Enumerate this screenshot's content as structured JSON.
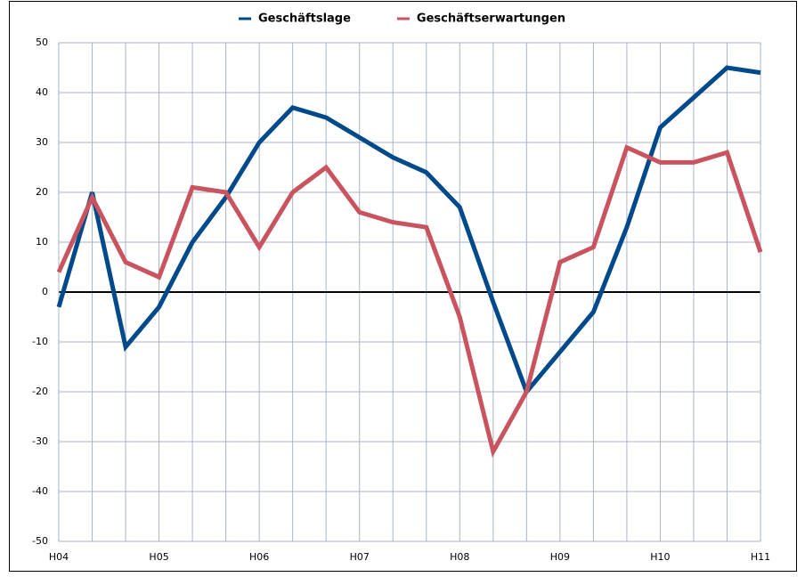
{
  "chart_data": {
    "type": "line",
    "categories": [
      "H04",
      null,
      null,
      "H05",
      null,
      null,
      "H06",
      null,
      null,
      "H07",
      null,
      null,
      "H08",
      null,
      null,
      "H09",
      null,
      null,
      "H10",
      null,
      null,
      "H11"
    ],
    "series": [
      {
        "name": "Geschäftslage",
        "color": "#004a8b",
        "values": [
          -3,
          20,
          -11,
          -3,
          10,
          19,
          30,
          37,
          35,
          31,
          27,
          24,
          17,
          -2,
          -20,
          -12,
          -4,
          13,
          33,
          39,
          45,
          44
        ]
      },
      {
        "name": "Geschäftserwartungen",
        "color": "#c9545f",
        "values": [
          4,
          19,
          6,
          3,
          21,
          20,
          9,
          20,
          25,
          16,
          14,
          13,
          -5,
          -32,
          -20,
          6,
          9,
          29,
          26,
          26,
          28,
          8
        ]
      }
    ],
    "ylim": [
      -50,
      50
    ],
    "yticks": [
      -50,
      -40,
      -30,
      -20,
      -10,
      0,
      10,
      20,
      30,
      40,
      50
    ],
    "grid": true,
    "legend": "top"
  }
}
